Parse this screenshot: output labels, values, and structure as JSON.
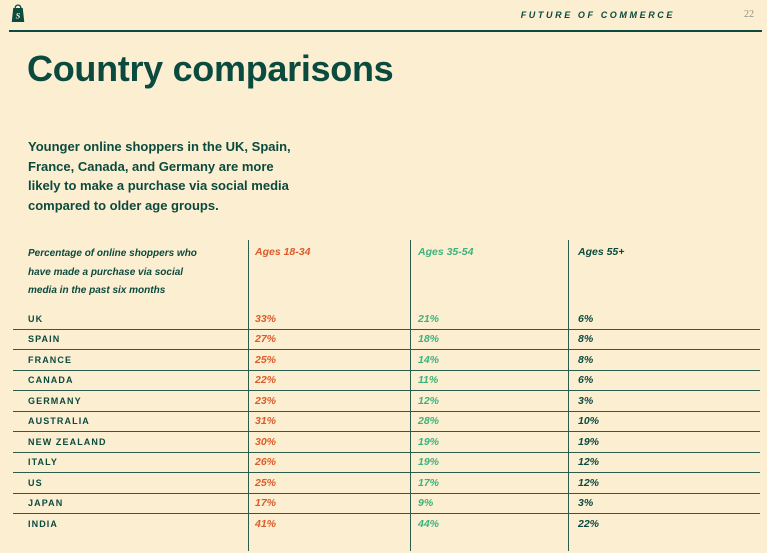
{
  "page": {
    "number": "22"
  },
  "header": {
    "brand": "FUTURE OF COMMERCE",
    "logo_icon": "shopify-bag-icon"
  },
  "title": "Country comparisons",
  "intro": {
    "lines": [
      "Younger online shoppers in the UK, Spain,",
      "France, Canada, and Germany are more",
      "likely to make a purchase via social media",
      "compared to older age groups."
    ]
  },
  "colors": {
    "background": "#FBEED1",
    "dark_green": "#0B4A3E",
    "orange": "#DB5C2A",
    "mint": "#3EB27D",
    "line": "#2E5C4C"
  },
  "chart_data": {
    "type": "table",
    "title": "Country comparisons",
    "description": "Percentage of online shoppers who have made a purchase via social media in the past six months",
    "description_lines": [
      "Percentage of online shoppers who",
      "have made a purchase via social",
      "media in the past six months"
    ],
    "columns": [
      "Ages 18-34",
      "Ages 35-54",
      "Ages 55+"
    ],
    "column_colors": [
      "#DB5C2A",
      "#3EB27D",
      "#0B4A3E"
    ],
    "rows": [
      {
        "country": "UK",
        "values": [
          "33%",
          "21%",
          "6%"
        ]
      },
      {
        "country": "SPAIN",
        "values": [
          "27%",
          "18%",
          "8%"
        ]
      },
      {
        "country": "FRANCE",
        "values": [
          "25%",
          "14%",
          "8%"
        ]
      },
      {
        "country": "CANADA",
        "values": [
          "22%",
          "11%",
          "6%"
        ]
      },
      {
        "country": "GERMANY",
        "values": [
          "23%",
          "12%",
          "3%"
        ]
      },
      {
        "country": "AUSTRALIA",
        "values": [
          "31%",
          "28%",
          "10%"
        ]
      },
      {
        "country": "NEW ZEALAND",
        "values": [
          "30%",
          "19%",
          "19%"
        ]
      },
      {
        "country": "ITALY",
        "values": [
          "26%",
          "19%",
          "12%"
        ]
      },
      {
        "country": "US",
        "values": [
          "25%",
          "17%",
          "12%"
        ]
      },
      {
        "country": "JAPAN",
        "values": [
          "17%",
          "9%",
          "3%"
        ]
      },
      {
        "country": "INDIA",
        "values": [
          "41%",
          "44%",
          "22%"
        ]
      }
    ]
  }
}
